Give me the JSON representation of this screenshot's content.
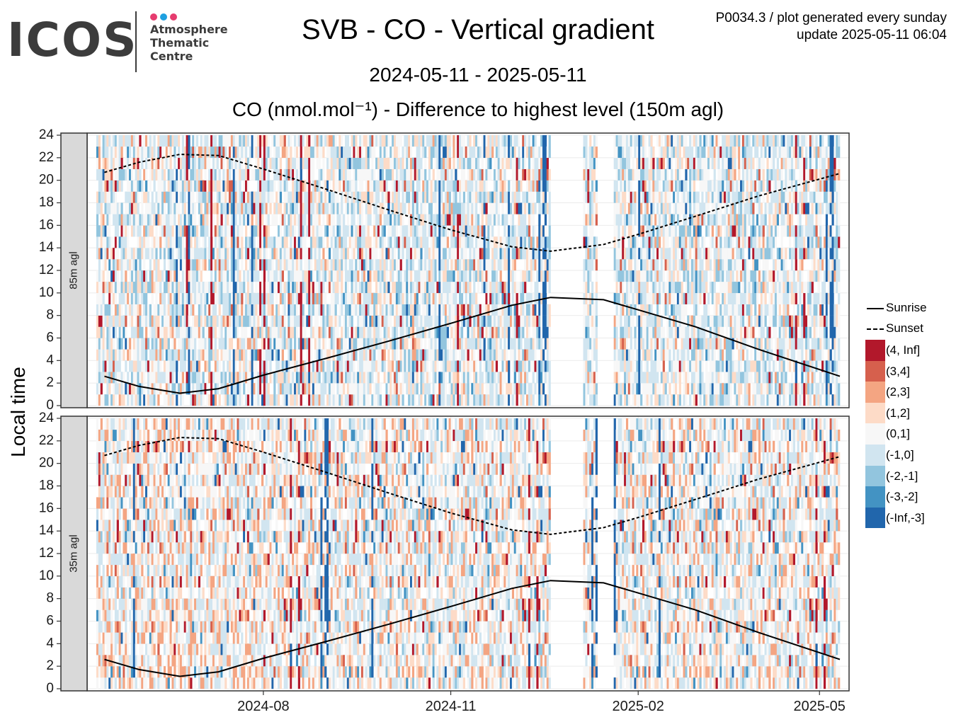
{
  "header": {
    "logo_text": "ICOS",
    "logo_sub": [
      "Atmosphere",
      "Thematic",
      "Centre"
    ],
    "logo_dot_colors": [
      "#e63c6f",
      "#1ea0e0",
      "#e63c6f"
    ],
    "title": "SVB - CO - Vertical gradient",
    "meta_line1": "P0034.3 / plot generated every sunday",
    "meta_line2": "update  2025-05-11 06:04",
    "date_range": "2024-05-11 - 2025-05-11"
  },
  "chart_data": {
    "type": "heatmap",
    "title": "CO (nmol.mol⁻¹) - Difference to highest level (150m agl)",
    "ylabel": "Local time",
    "x_range": [
      "2024-05-11",
      "2025-05-11"
    ],
    "x_ticks": [
      {
        "date": "2024-08-01",
        "label": "2024-08"
      },
      {
        "date": "2024-11-01",
        "label": "2024-11"
      },
      {
        "date": "2025-02-01",
        "label": "2025-02"
      },
      {
        "date": "2025-05-01",
        "label": "2025-05"
      }
    ],
    "y_range": [
      0,
      24
    ],
    "y_ticks": [
      0,
      2,
      4,
      6,
      8,
      10,
      12,
      14,
      16,
      18,
      20,
      22,
      24
    ],
    "panels": [
      {
        "label": "85m agl"
      },
      {
        "label": "35m agl"
      }
    ],
    "bins": [
      {
        "label": "(4, Inf]",
        "color": "#b2182b"
      },
      {
        "label": "(3,4]",
        "color": "#d6604d"
      },
      {
        "label": "(2,3]",
        "color": "#f4a582"
      },
      {
        "label": "(1,2]",
        "color": "#fddbc7"
      },
      {
        "label": "(0,1]",
        "color": "#f7f7f7"
      },
      {
        "label": "(-1,0]",
        "color": "#d1e5f0"
      },
      {
        "label": "(-2,-1]",
        "color": "#92c5de"
      },
      {
        "label": "(-3,-2]",
        "color": "#4393c3"
      },
      {
        "label": "(-Inf,-3]",
        "color": "#2166ac"
      }
    ],
    "data_gaps": [
      [
        "2024-12-20",
        "2025-01-05"
      ],
      [
        "2025-01-12",
        "2025-01-20"
      ]
    ],
    "sunrise": [
      {
        "date": "2024-05-15",
        "hour": 2.6
      },
      {
        "date": "2024-06-01",
        "hour": 1.7
      },
      {
        "date": "2024-06-21",
        "hour": 1.1
      },
      {
        "date": "2024-07-10",
        "hour": 1.5
      },
      {
        "date": "2024-08-01",
        "hour": 2.7
      },
      {
        "date": "2024-09-01",
        "hour": 4.2
      },
      {
        "date": "2024-10-01",
        "hour": 5.7
      },
      {
        "date": "2024-11-01",
        "hour": 7.3
      },
      {
        "date": "2024-12-01",
        "hour": 8.9
      },
      {
        "date": "2024-12-20",
        "hour": 9.6
      },
      {
        "date": "2025-01-15",
        "hour": 9.4
      },
      {
        "date": "2025-02-01",
        "hour": 8.5
      },
      {
        "date": "2025-03-01",
        "hour": 7.0
      },
      {
        "date": "2025-04-01",
        "hour": 5.0
      },
      {
        "date": "2025-05-11",
        "hour": 2.6
      }
    ],
    "sunset": [
      {
        "date": "2024-05-15",
        "hour": 20.7
      },
      {
        "date": "2024-06-01",
        "hour": 21.6
      },
      {
        "date": "2024-06-21",
        "hour": 22.3
      },
      {
        "date": "2024-07-10",
        "hour": 22.2
      },
      {
        "date": "2024-08-01",
        "hour": 21.0
      },
      {
        "date": "2024-09-01",
        "hour": 19.2
      },
      {
        "date": "2024-10-01",
        "hour": 17.4
      },
      {
        "date": "2024-11-01",
        "hour": 15.6
      },
      {
        "date": "2024-12-01",
        "hour": 14.1
      },
      {
        "date": "2024-12-20",
        "hour": 13.7
      },
      {
        "date": "2025-01-15",
        "hour": 14.3
      },
      {
        "date": "2025-02-01",
        "hour": 15.2
      },
      {
        "date": "2025-03-01",
        "hour": 16.8
      },
      {
        "date": "2025-04-01",
        "hour": 18.6
      },
      {
        "date": "2025-05-11",
        "hour": 20.6
      }
    ],
    "legend": [
      {
        "label": "Sunrise",
        "style": "solid"
      },
      {
        "label": "Sunset",
        "style": "dashed"
      }
    ]
  }
}
